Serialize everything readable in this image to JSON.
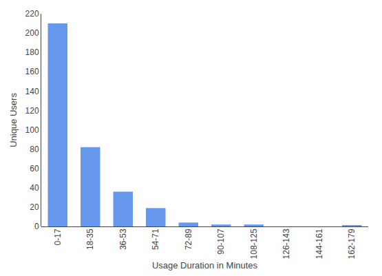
{
  "chart_data": {
    "type": "bar",
    "categories": [
      "0-17",
      "18-35",
      "36-53",
      "54-71",
      "72-89",
      "90-107",
      "108-125",
      "126-143",
      "144-161",
      "162-179"
    ],
    "values": [
      210,
      82,
      36,
      19,
      4,
      2,
      2,
      0,
      0,
      1
    ],
    "color": "#6699ee",
    "xlabel": "Usage Duration in Minutes",
    "ylabel": "Unique Users",
    "ylim": [
      0,
      220
    ],
    "yticks": [
      0,
      20,
      40,
      60,
      80,
      100,
      120,
      140,
      160,
      180,
      200,
      220
    ],
    "grid": false
  }
}
